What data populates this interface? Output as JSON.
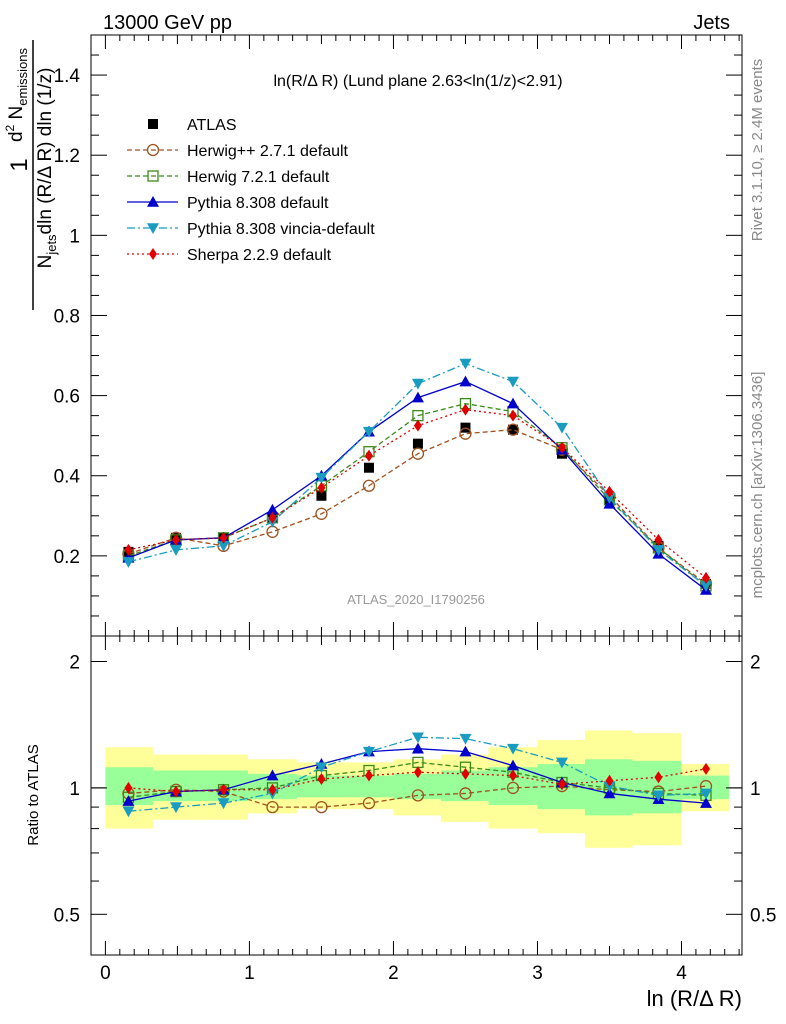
{
  "header": {
    "left": "13000 GeV pp",
    "right": "Jets"
  },
  "side_labels": {
    "rivet": "Rivet 3.1.10, ≥ 2.4M events",
    "mcplots": "mcplots.cern.ch [arXiv:1306.3436]"
  },
  "analysis_id": "ATLAS_2020_I1790256",
  "chart_data": [
    {
      "type": "scatter",
      "title": "ln(R/Δ R) (Lund plane 2.63<ln(1/z)<2.91)",
      "xlabel": "ln (R/Δ R)",
      "ylabel": "1/N_jets dln (R/Δ R) dln (1/z) · d² N_emissions",
      "xlim": [
        -0.1,
        4.42
      ],
      "ylim": [
        0,
        1.5
      ],
      "yticks": [
        "0.2",
        "0.4",
        "0.6",
        "0.8",
        "1",
        "1.2",
        "1.4"
      ],
      "x": [
        0.16,
        0.49,
        0.82,
        1.16,
        1.5,
        1.83,
        2.17,
        2.5,
        2.83,
        3.17,
        3.5,
        3.84,
        4.17
      ],
      "legend": {
        "position": "top-left"
      },
      "series": [
        {
          "name": "ATLAS",
          "color": "#000000",
          "marker": "square-filled",
          "values": [
            0.21,
            0.245,
            0.245,
            0.295,
            0.35,
            0.42,
            0.48,
            0.52,
            0.515,
            0.455,
            0.34,
            0.225,
            0.13
          ]
        },
        {
          "name": "Herwig++ 2.7.1 default",
          "color": "#a0521e",
          "marker": "circle-open",
          "dash": "dashed",
          "values": [
            0.205,
            0.245,
            0.225,
            0.26,
            0.305,
            0.375,
            0.455,
            0.505,
            0.515,
            0.465,
            0.35,
            0.22,
            0.13
          ]
        },
        {
          "name": "Herwig 7.2.1 default",
          "color": "#3a8a1a",
          "marker": "square-open",
          "dash": "dashed",
          "values": [
            0.2,
            0.24,
            0.245,
            0.295,
            0.375,
            0.46,
            0.55,
            0.58,
            0.56,
            0.47,
            0.34,
            0.22,
            0.125
          ]
        },
        {
          "name": "Pythia 8.308 default",
          "color": "#0000cc",
          "marker": "triangle-up-filled",
          "dash": "solid",
          "values": [
            0.195,
            0.24,
            0.245,
            0.315,
            0.4,
            0.51,
            0.595,
            0.635,
            0.58,
            0.465,
            0.33,
            0.205,
            0.115
          ]
        },
        {
          "name": "Pythia 8.308 vincia-default",
          "color": "#1a9cc0",
          "marker": "triangle-down-filled",
          "dash": "dashdot",
          "values": [
            0.185,
            0.215,
            0.225,
            0.285,
            0.395,
            0.51,
            0.63,
            0.68,
            0.635,
            0.52,
            0.345,
            0.215,
            0.125
          ]
        },
        {
          "name": "Sherpa 2.2.9 default",
          "color": "#e00000",
          "marker": "diamond-filled",
          "dash": "dotted",
          "values": [
            0.215,
            0.24,
            0.245,
            0.295,
            0.37,
            0.45,
            0.525,
            0.565,
            0.55,
            0.47,
            0.36,
            0.24,
            0.145
          ]
        }
      ]
    },
    {
      "type": "line",
      "ylabel": "Ratio to ATLAS",
      "xlabel": "ln (R/Δ R)",
      "xlim": [
        -0.1,
        4.42
      ],
      "ylim": [
        0.4,
        2.3
      ],
      "yscale": "log",
      "yticks": [
        "0.5",
        "1",
        "2"
      ],
      "xticks": [
        "0",
        "1",
        "2",
        "3",
        "4"
      ],
      "x": [
        0.16,
        0.49,
        0.82,
        1.16,
        1.5,
        1.83,
        2.17,
        2.5,
        2.83,
        3.17,
        3.5,
        3.84,
        4.17
      ],
      "bin_edges": [
        0.0,
        0.33,
        0.66,
        0.99,
        1.33,
        1.66,
        2.0,
        2.33,
        2.66,
        3.0,
        3.33,
        3.66,
        4.0,
        4.33
      ],
      "bands": {
        "yellow": {
          "color": "#ffff99",
          "lo": [
            0.8,
            0.84,
            0.84,
            0.87,
            0.89,
            0.89,
            0.86,
            0.83,
            0.8,
            0.78,
            0.72,
            0.73,
            0.88
          ],
          "hi": [
            1.25,
            1.2,
            1.2,
            1.17,
            1.15,
            1.15,
            1.17,
            1.2,
            1.25,
            1.3,
            1.37,
            1.35,
            1.14
          ]
        },
        "green": {
          "color": "#99ff99",
          "lo": [
            0.91,
            0.93,
            0.93,
            0.94,
            0.95,
            0.95,
            0.94,
            0.93,
            0.91,
            0.89,
            0.86,
            0.87,
            0.94
          ],
          "hi": [
            1.12,
            1.1,
            1.1,
            1.08,
            1.07,
            1.07,
            1.08,
            1.1,
            1.12,
            1.14,
            1.17,
            1.16,
            1.07
          ]
        }
      },
      "series": [
        {
          "name": "Herwig++ 2.7.1 default",
          "color": "#a0521e",
          "marker": "circle-open",
          "dash": "dashed",
          "values": [
            0.97,
            0.99,
            0.98,
            0.9,
            0.9,
            0.92,
            0.96,
            0.97,
            1.0,
            1.01,
            0.99,
            0.98,
            1.01
          ]
        },
        {
          "name": "Herwig 7.2.1 default",
          "color": "#3a8a1a",
          "marker": "square-open",
          "dash": "dashed",
          "values": [
            0.95,
            0.98,
            0.99,
            1.0,
            1.07,
            1.1,
            1.15,
            1.12,
            1.09,
            1.03,
            1.0,
            0.97,
            0.96
          ]
        },
        {
          "name": "Pythia 8.308 default",
          "color": "#0000cc",
          "marker": "triangle-up-filled",
          "dash": "solid",
          "values": [
            0.93,
            0.98,
            0.99,
            1.07,
            1.14,
            1.22,
            1.24,
            1.22,
            1.13,
            1.03,
            0.97,
            0.94,
            0.92
          ]
        },
        {
          "name": "Pythia 8.308 vincia-default",
          "color": "#1a9cc0",
          "marker": "triangle-down-filled",
          "dash": "dashdot",
          "values": [
            0.88,
            0.9,
            0.92,
            0.97,
            1.12,
            1.22,
            1.32,
            1.31,
            1.24,
            1.15,
            1.01,
            0.96,
            0.97
          ]
        },
        {
          "name": "Sherpa 2.2.9 default",
          "color": "#e00000",
          "marker": "diamond-filled",
          "dash": "dotted",
          "values": [
            1.0,
            0.98,
            0.99,
            0.99,
            1.05,
            1.07,
            1.09,
            1.08,
            1.07,
            1.02,
            1.04,
            1.06,
            1.11
          ]
        }
      ]
    }
  ]
}
